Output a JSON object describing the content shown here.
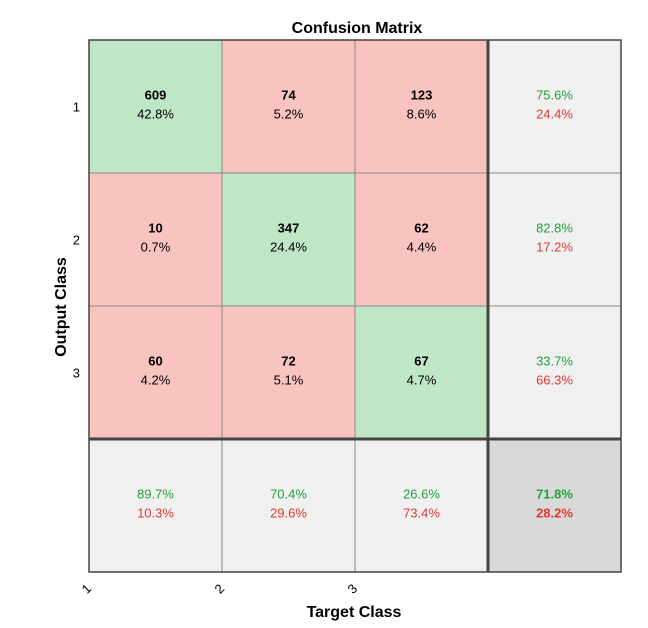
{
  "chart_data": {
    "type": "heatmap",
    "title": "Confusion Matrix",
    "xlabel": "Target Class",
    "ylabel": "Output Class",
    "x_tick_labels": [
      "1",
      "2",
      "3"
    ],
    "y_tick_labels": [
      "1",
      "2",
      "3"
    ],
    "matrix": [
      [
        {
          "count": "609",
          "pct": "42.8%"
        },
        {
          "count": "74",
          "pct": "5.2%"
        },
        {
          "count": "123",
          "pct": "8.6%"
        }
      ],
      [
        {
          "count": "10",
          "pct": "0.7%"
        },
        {
          "count": "347",
          "pct": "24.4%"
        },
        {
          "count": "62",
          "pct": "4.4%"
        }
      ],
      [
        {
          "count": "60",
          "pct": "4.2%"
        },
        {
          "count": "72",
          "pct": "5.1%"
        },
        {
          "count": "67",
          "pct": "4.7%"
        }
      ]
    ],
    "row_summary": [
      {
        "correct": "75.6%",
        "incorrect": "24.4%"
      },
      {
        "correct": "82.8%",
        "incorrect": "17.2%"
      },
      {
        "correct": "33.7%",
        "incorrect": "66.3%"
      }
    ],
    "col_summary": [
      {
        "correct": "89.7%",
        "incorrect": "10.3%"
      },
      {
        "correct": "70.4%",
        "incorrect": "29.6%"
      },
      {
        "correct": "26.6%",
        "incorrect": "73.4%"
      }
    ],
    "overall": {
      "correct": "71.8%",
      "incorrect": "28.2%"
    },
    "colors": {
      "correct_cell": "#bfe6c6",
      "incorrect_cell": "#f9c3c0",
      "summary_cell": "#f0f0f0",
      "overall_cell": "#d9d9d9",
      "correct_text": "#22a33a",
      "incorrect_text": "#e03a33",
      "text": "#000000",
      "grid": "#888888",
      "frame": "#444444"
    }
  }
}
